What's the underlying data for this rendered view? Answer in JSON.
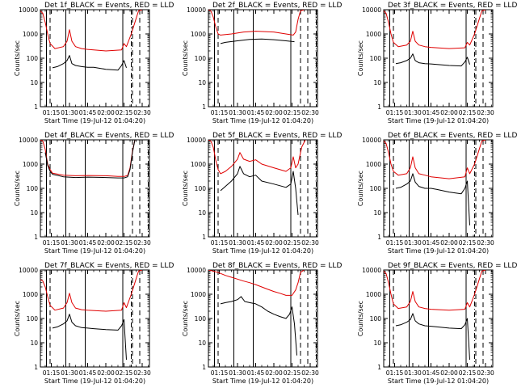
{
  "figure": {
    "background": "#ffffff",
    "axes_color": "#000000"
  },
  "chart_data": {
    "type": "line",
    "scale_y": "log",
    "ylim": [
      1,
      10000
    ],
    "ytick_labels": [
      "1",
      "10",
      "100",
      "1000",
      "10000"
    ],
    "xlim": [
      "01:06",
      "02:36"
    ],
    "xtick_labels": [
      "01:15",
      "01:30",
      "01:45",
      "02:00",
      "02:15",
      "02:30"
    ],
    "xlabel": "Start Time (19-Jul-12 01:04:20)",
    "ylabel": "Counts/sec",
    "colors": {
      "events": "#000000",
      "lld": "#e00000"
    },
    "solid_markers": [
      "01:11",
      "01:27",
      "01:43",
      "02:14"
    ],
    "dashed_markers": [
      "01:14",
      "02:22",
      "02:28"
    ],
    "panels": [
      {
        "title": "Det 1f_BLACK = Events, RED = LLD",
        "dash_dot_at": "02:21",
        "events": {
          "x": [
            "01:16",
            "01:20",
            "01:25",
            "01:28",
            "01:30",
            "01:32",
            "01:35",
            "01:40",
            "01:45",
            "01:50",
            "02:00",
            "02:10",
            "02:13",
            "02:15",
            "02:17"
          ],
          "y": [
            40,
            45,
            60,
            80,
            130,
            60,
            50,
            45,
            42,
            42,
            35,
            32,
            50,
            80,
            40
          ]
        },
        "lld": {
          "x": [
            "01:06",
            "01:08",
            "01:10",
            "01:12",
            "01:14",
            "01:18",
            "01:25",
            "01:28",
            "01:30",
            "01:32",
            "01:35",
            "01:40",
            "01:45",
            "02:00",
            "02:13",
            "02:15",
            "02:17",
            "02:21",
            "02:24",
            "02:27",
            "02:30"
          ],
          "y": [
            9000,
            7000,
            3000,
            1000,
            400,
            250,
            300,
            500,
            1500,
            500,
            300,
            250,
            230,
            200,
            220,
            400,
            300,
            1000,
            3000,
            9000,
            10000
          ]
        }
      },
      {
        "title": "Det 2f_BLACK = Events, RED = LLD",
        "dash_dot_at": "02:35",
        "events": {
          "x": [
            "01:16",
            "01:20",
            "01:30",
            "01:40",
            "01:50",
            "02:00",
            "02:10",
            "02:17"
          ],
          "y": [
            400,
            450,
            520,
            600,
            620,
            580,
            520,
            480
          ]
        },
        "lld": {
          "x": [
            "01:06",
            "01:08",
            "01:10",
            "01:12",
            "01:14",
            "01:16",
            "01:25",
            "01:35",
            "01:45",
            "02:00",
            "02:10",
            "02:16",
            "02:18",
            "02:20",
            "02:22",
            "02:25"
          ],
          "y": [
            10000,
            9000,
            5000,
            2000,
            1000,
            900,
            1000,
            1200,
            1300,
            1200,
            1000,
            900,
            1200,
            4000,
            9000,
            10000
          ]
        }
      },
      {
        "title": "Det 3f_BLACK = Events, RED = LLD",
        "dash_dot_at": "02:21",
        "events": {
          "x": [
            "01:16",
            "01:20",
            "01:25",
            "01:28",
            "01:30",
            "01:32",
            "01:35",
            "01:40",
            "01:45",
            "01:50",
            "02:00",
            "02:10",
            "02:13",
            "02:15",
            "02:17"
          ],
          "y": [
            60,
            65,
            80,
            100,
            150,
            80,
            65,
            60,
            58,
            55,
            50,
            48,
            70,
            110,
            55
          ]
        },
        "lld": {
          "x": [
            "01:06",
            "01:08",
            "01:10",
            "01:12",
            "01:14",
            "01:18",
            "01:25",
            "01:28",
            "01:30",
            "01:32",
            "01:35",
            "01:40",
            "01:45",
            "02:00",
            "02:13",
            "02:15",
            "02:17",
            "02:21",
            "02:24",
            "02:27",
            "02:30"
          ],
          "y": [
            9000,
            7000,
            3000,
            1000,
            450,
            300,
            350,
            500,
            1300,
            500,
            350,
            300,
            280,
            250,
            270,
            450,
            350,
            1000,
            3000,
            9000,
            10000
          ]
        }
      },
      {
        "title": "Det 4f_BLACK = Events, RED = LLD",
        "dash_dot_at": "02:35",
        "events": {
          "x": [
            "01:10",
            "01:12",
            "01:14",
            "01:16",
            "01:25",
            "01:35",
            "01:45",
            "02:00",
            "02:10",
            "02:15",
            "02:18",
            "02:20",
            "02:22",
            "02:24"
          ],
          "y": [
            3000,
            900,
            500,
            380,
            300,
            280,
            290,
            280,
            270,
            270,
            300,
            600,
            3000,
            10000
          ]
        },
        "lld": {
          "x": [
            "01:06",
            "01:08",
            "01:10",
            "01:12",
            "01:14",
            "01:16",
            "01:25",
            "01:35",
            "01:45",
            "02:00",
            "02:10",
            "02:15",
            "02:18",
            "02:20",
            "02:22",
            "02:24"
          ],
          "y": [
            10000,
            9000,
            4000,
            1000,
            600,
            420,
            350,
            330,
            340,
            330,
            310,
            310,
            340,
            700,
            3500,
            10000
          ]
        }
      },
      {
        "title": "Det 5f_BLACK = Events, RED = LLD",
        "dash_dot_at": "02:35",
        "events": {
          "x": [
            "01:16",
            "01:20",
            "01:25",
            "01:30",
            "01:32",
            "01:35",
            "01:40",
            "01:45",
            "01:50",
            "02:00",
            "02:10",
            "02:14",
            "02:16",
            "02:18",
            "02:20"
          ],
          "y": [
            80,
            120,
            200,
            400,
            800,
            400,
            300,
            350,
            200,
            150,
            110,
            150,
            500,
            100,
            8
          ]
        },
        "lld": {
          "x": [
            "01:06",
            "01:08",
            "01:10",
            "01:12",
            "01:14",
            "01:16",
            "01:20",
            "01:25",
            "01:30",
            "01:32",
            "01:35",
            "01:40",
            "01:45",
            "01:50",
            "02:00",
            "02:10",
            "02:14",
            "02:16",
            "02:18",
            "02:20",
            "02:23",
            "02:26"
          ],
          "y": [
            10000,
            9000,
            5000,
            1500,
            600,
            400,
            500,
            800,
            1600,
            3000,
            1600,
            1300,
            1500,
            1000,
            700,
            500,
            700,
            2000,
            700,
            1000,
            5000,
            10000
          ]
        }
      },
      {
        "title": "Det 6f_BLACK = Events, RED = LLD",
        "dash_dot_at": "02:21",
        "events": {
          "x": [
            "01:16",
            "01:20",
            "01:25",
            "01:28",
            "01:30",
            "01:32",
            "01:35",
            "01:40",
            "01:45",
            "01:50",
            "02:00",
            "02:10",
            "02:13",
            "02:15",
            "02:17"
          ],
          "y": [
            100,
            110,
            150,
            200,
            400,
            180,
            120,
            100,
            100,
            90,
            70,
            60,
            100,
            200,
            3
          ]
        },
        "lld": {
          "x": [
            "01:06",
            "01:08",
            "01:10",
            "01:12",
            "01:14",
            "01:18",
            "01:25",
            "01:28",
            "01:30",
            "01:32",
            "01:35",
            "01:40",
            "01:45",
            "02:00",
            "02:13",
            "02:15",
            "02:17",
            "02:21",
            "02:24",
            "02:27",
            "02:30"
          ],
          "y": [
            9000,
            7000,
            3000,
            1000,
            500,
            350,
            400,
            700,
            2000,
            700,
            400,
            350,
            300,
            250,
            300,
            700,
            400,
            1000,
            3000,
            9000,
            10000
          ]
        }
      },
      {
        "title": "Det 7f_BLACK = Events, RED = LLD",
        "dash_dot_at": "02:21",
        "events": {
          "x": [
            "01:16",
            "01:20",
            "01:25",
            "01:28",
            "01:30",
            "01:32",
            "01:35",
            "01:40",
            "01:45",
            "01:50",
            "02:00",
            "02:10",
            "02:13",
            "02:15",
            "02:17"
          ],
          "y": [
            40,
            45,
            60,
            80,
            150,
            70,
            50,
            42,
            40,
            38,
            35,
            33,
            50,
            90,
            2
          ]
        },
        "lld": {
          "x": [
            "01:06",
            "01:08",
            "01:10",
            "01:12",
            "01:14",
            "01:18",
            "01:25",
            "01:28",
            "01:30",
            "01:32",
            "01:35",
            "01:40",
            "01:45",
            "02:00",
            "02:13",
            "02:15",
            "02:17",
            "02:21",
            "02:24",
            "02:27",
            "02:30"
          ],
          "y": [
            4000,
            3500,
            2000,
            800,
            350,
            220,
            270,
            450,
            1100,
            450,
            270,
            230,
            220,
            200,
            220,
            450,
            280,
            1000,
            3000,
            9000,
            10000
          ]
        }
      },
      {
        "title": "Det 8f_BLACK = Events, RED = LLD",
        "dash_dot_at": "02:35",
        "events": {
          "x": [
            "01:16",
            "01:20",
            "01:25",
            "01:30",
            "01:33",
            "01:36",
            "01:40",
            "01:45",
            "01:50",
            "01:55",
            "02:00",
            "02:05",
            "02:10",
            "02:13",
            "02:15",
            "02:17",
            "02:19"
          ],
          "y": [
            400,
            450,
            500,
            600,
            800,
            500,
            450,
            400,
            300,
            200,
            150,
            120,
            100,
            150,
            300,
            60,
            3
          ]
        },
        "lld": {
          "x": [
            "01:06",
            "01:10",
            "01:15",
            "01:20",
            "01:25",
            "01:30",
            "01:35",
            "01:40",
            "01:45",
            "01:50",
            "01:55",
            "02:00",
            "02:05",
            "02:10",
            "02:15",
            "02:18",
            "02:20",
            "02:22",
            "02:25"
          ],
          "y": [
            10000,
            9000,
            7500,
            6000,
            5000,
            4200,
            3500,
            3000,
            2500,
            2000,
            1600,
            1300,
            1100,
            900,
            900,
            1500,
            3000,
            8000,
            10000
          ]
        }
      },
      {
        "title": "Det 9f_BLACK = Events, RED = LLD",
        "dash_dot_at": "02:21",
        "events": {
          "x": [
            "01:16",
            "01:20",
            "01:25",
            "01:28",
            "01:30",
            "01:32",
            "01:35",
            "01:40",
            "01:45",
            "01:50",
            "02:00",
            "02:10",
            "02:13",
            "02:15",
            "02:17"
          ],
          "y": [
            50,
            55,
            70,
            90,
            160,
            80,
            60,
            50,
            48,
            45,
            40,
            38,
            55,
            100,
            2
          ]
        },
        "lld": {
          "x": [
            "01:06",
            "01:08",
            "01:10",
            "01:12",
            "01:14",
            "01:18",
            "01:25",
            "01:28",
            "01:30",
            "01:32",
            "01:35",
            "01:40",
            "01:45",
            "02:00",
            "02:13",
            "02:15",
            "02:17",
            "02:21",
            "02:24",
            "02:27",
            "02:30"
          ],
          "y": [
            9000,
            7000,
            3000,
            1000,
            400,
            260,
            300,
            500,
            1300,
            500,
            300,
            260,
            240,
            220,
            240,
            450,
            300,
            1000,
            3000,
            9000,
            10000
          ]
        }
      }
    ]
  }
}
